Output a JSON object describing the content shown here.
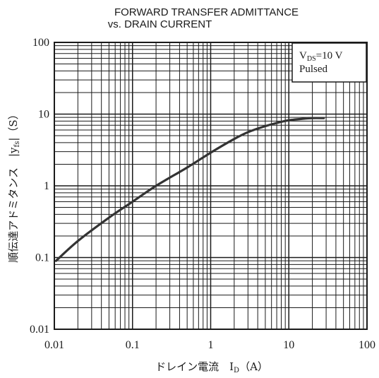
{
  "chart_data": {
    "type": "line",
    "title": "FORWARD TRANSFER ADMITTANCE",
    "subtitle": "vs. DRAIN CURRENT",
    "xlabel": "ドレイン電流　I",
    "xlabel_sub": "D",
    "xlabel_unit": "（A）",
    "ylabel": "順伝達アドミタンス　|y",
    "ylabel_sub": "fs",
    "ylabel_unit": "|（S）",
    "x_scale": "log",
    "y_scale": "log",
    "xlim": [
      0.01,
      100
    ],
    "ylim": [
      0.01,
      100
    ],
    "x_ticks": [
      "0.01",
      "0.1",
      "1",
      "10",
      "100"
    ],
    "y_ticks": [
      "0.01",
      "0.1",
      "1",
      "10",
      "100"
    ],
    "grid": true,
    "legend": {
      "line1_main": "V",
      "line1_sub": "DS",
      "line1_rest": "=10  V",
      "line2": "Pulsed",
      "placement": "top-right"
    },
    "series": [
      {
        "x": [
          0.0105,
          0.02,
          0.05,
          0.1,
          0.2,
          0.5,
          1,
          2,
          3,
          5,
          8,
          10,
          15,
          20,
          28
        ],
        "y": [
          0.09,
          0.17,
          0.36,
          0.6,
          1.0,
          1.8,
          2.9,
          4.5,
          5.6,
          6.8,
          7.8,
          8.2,
          8.6,
          8.8,
          8.8
        ]
      }
    ]
  }
}
